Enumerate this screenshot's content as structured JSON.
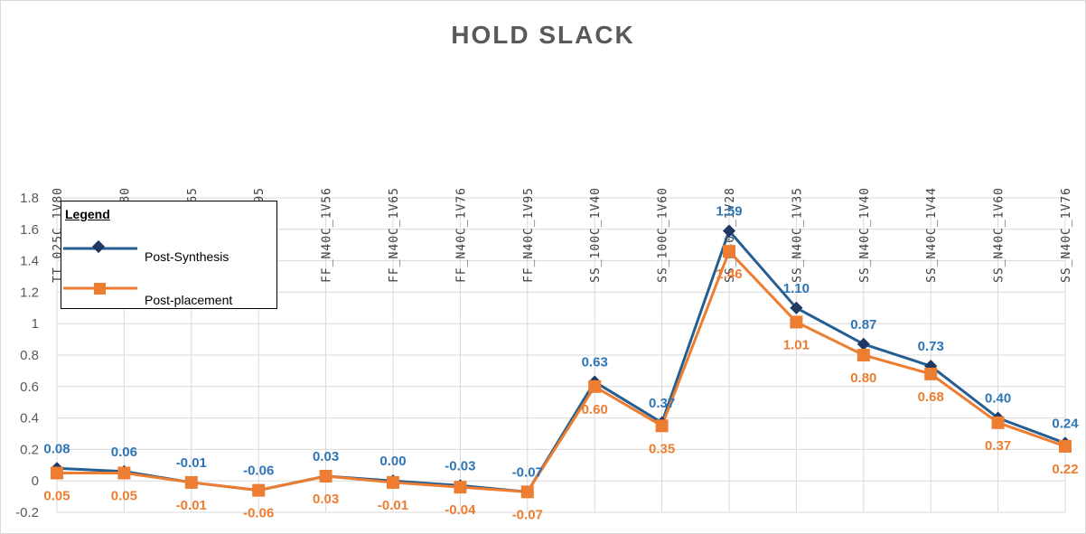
{
  "chart_data": {
    "type": "line",
    "title": "HOLD SLACK",
    "categories": [
      "TT_025C_1V80",
      "TT_100C_1V80",
      "FF_100C_1V65",
      "FF_100C_1V95",
      "FF_N40C_1V56",
      "FF_N40C_1V65",
      "FF_N40C_1V76",
      "FF_N40C_1V95",
      "SS_100C_1V40",
      "SS_100C_1V60",
      "SS_N40C_1V28",
      "SS_N40C_1V35",
      "SS_N40C_1V40",
      "SS_N40C_1V44",
      "SS_N40C_1V60",
      "SS_N40C_1V76"
    ],
    "ylim": [
      -0.2,
      1.8
    ],
    "yticks": [
      "-0.2",
      "0",
      "0.2",
      "0.4",
      "0.6",
      "0.8",
      "1",
      "1.2",
      "1.4",
      "1.6",
      "1.8"
    ],
    "grid": true,
    "legend_title": "Legend",
    "legend_position": "top-left",
    "series": [
      {
        "name": "Post-Synthesis",
        "color": "#255e91",
        "marker": "diamond",
        "label_color": "#2e75b6",
        "values": [
          0.08,
          0.06,
          -0.01,
          -0.06,
          0.03,
          0.0,
          -0.03,
          -0.07,
          0.63,
          0.37,
          1.59,
          1.1,
          0.87,
          0.73,
          0.4,
          0.24
        ],
        "labels": [
          "0.08",
          "0.06",
          "-0.01",
          "-0.06",
          "0.03",
          "0.00",
          "-0.03",
          "-0.07",
          "0.63",
          "0.37",
          "1.59",
          "1.10",
          "0.87",
          "0.73",
          "0.40",
          "0.24"
        ]
      },
      {
        "name": "Post-placement",
        "color": "#ed7d31",
        "marker": "square",
        "label_color": "#ed7d31",
        "values": [
          0.05,
          0.05,
          -0.01,
          -0.06,
          0.03,
          -0.01,
          -0.04,
          -0.07,
          0.6,
          0.35,
          1.46,
          1.01,
          0.8,
          0.68,
          0.37,
          0.22
        ],
        "labels": [
          "0.05",
          "0.05",
          "-0.01",
          "-0.06",
          "0.03",
          "-0.01",
          "-0.04",
          "-0.07",
          "0.60",
          "0.35",
          "1.46",
          "1.01",
          "0.80",
          "0.68",
          "0.37",
          "0.22"
        ]
      }
    ]
  }
}
